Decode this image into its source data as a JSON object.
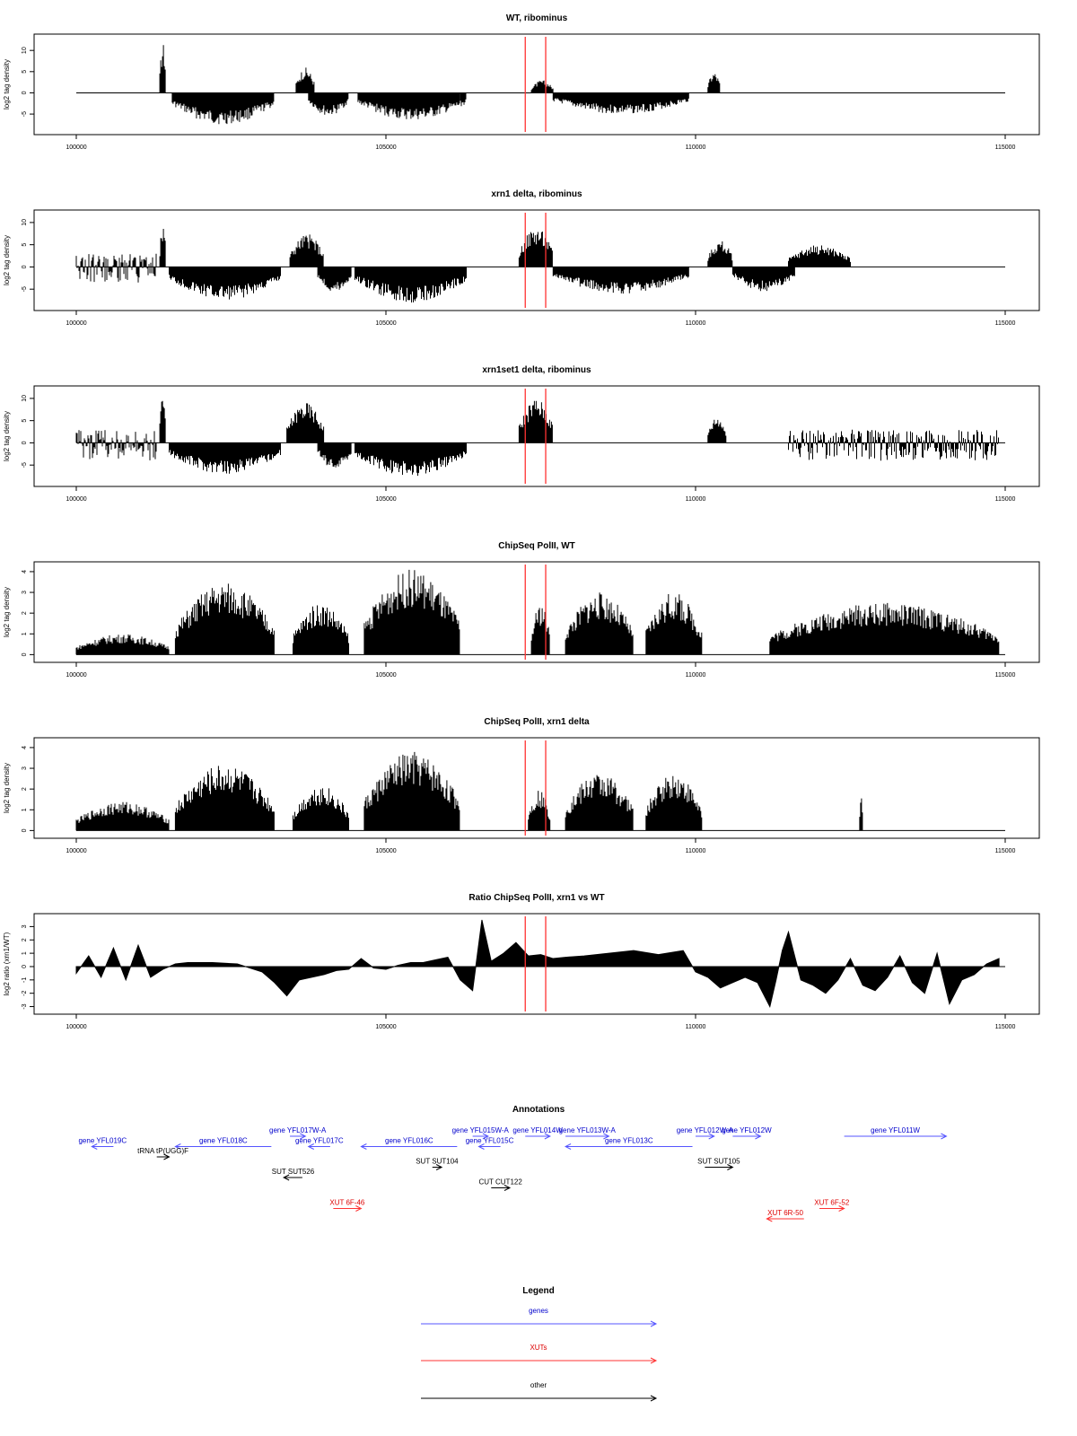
{
  "chart_data": [
    {
      "type": "bar",
      "title": "WT, ribominus",
      "ylabel": "log2 tag density",
      "xlim": [
        100000,
        115000
      ],
      "ylim": [
        -9,
        13
      ],
      "yticks": [
        -5,
        0,
        5,
        10
      ],
      "xticks": [
        100000,
        105000,
        110000,
        115000
      ],
      "markers": [
        107250,
        107580
      ],
      "profile": [
        {
          "x": [
            101350,
            101450
          ],
          "y": [
            10,
            12
          ]
        },
        {
          "x": [
            101550,
            103200
          ],
          "y": [
            -6.5,
            -7.5
          ]
        },
        {
          "x": [
            103550,
            103850
          ],
          "y": [
            5,
            6
          ]
        },
        {
          "x": [
            103750,
            104400
          ],
          "y": [
            -4.5,
            -5.5
          ]
        },
        {
          "x": [
            104550,
            106300
          ],
          "y": [
            -5.5,
            -6.5
          ]
        },
        {
          "x": [
            107350,
            107700
          ],
          "y": [
            2,
            3
          ]
        },
        {
          "x": [
            107700,
            109900
          ],
          "y": [
            -4,
            -5
          ]
        },
        {
          "x": [
            110200,
            110400
          ],
          "y": [
            4,
            5
          ]
        }
      ],
      "baseline_x": [
        100000,
        115000
      ]
    },
    {
      "type": "bar",
      "title": "xrn1 delta, ribominus",
      "ylabel": "log2 tag density",
      "xlim": [
        100000,
        115000
      ],
      "ylim": [
        -9,
        12
      ],
      "yticks": [
        -5,
        0,
        5,
        10
      ],
      "xticks": [
        100000,
        105000,
        110000,
        115000
      ],
      "markers": [
        107250,
        107580
      ],
      "profile": [
        {
          "x": [
            100000,
            101300
          ],
          "y": [
            3,
            -4
          ]
        },
        {
          "x": [
            101350,
            101450
          ],
          "y": [
            9,
            10
          ]
        },
        {
          "x": [
            101500,
            103300
          ],
          "y": [
            -6.5,
            -7.5
          ]
        },
        {
          "x": [
            103450,
            104000
          ],
          "y": [
            6,
            7.5
          ]
        },
        {
          "x": [
            103900,
            104450
          ],
          "y": [
            -5,
            -6
          ]
        },
        {
          "x": [
            104500,
            106300
          ],
          "y": [
            -7,
            -8
          ]
        },
        {
          "x": [
            107150,
            107700
          ],
          "y": [
            7,
            9
          ]
        },
        {
          "x": [
            107700,
            109900
          ],
          "y": [
            -5,
            -6
          ]
        },
        {
          "x": [
            110200,
            110600
          ],
          "y": [
            5,
            6
          ]
        },
        {
          "x": [
            110600,
            111600
          ],
          "y": [
            -5,
            -5.5
          ]
        },
        {
          "x": [
            111500,
            112500
          ],
          "y": [
            4,
            5
          ]
        }
      ],
      "baseline_x": [
        100000,
        115000
      ]
    },
    {
      "type": "bar",
      "title": "xrn1set1 delta, ribominus",
      "ylabel": "log2 tag density",
      "xlim": [
        100000,
        115000
      ],
      "ylim": [
        -9,
        12
      ],
      "yticks": [
        -5,
        0,
        5,
        10
      ],
      "xticks": [
        100000,
        105000,
        110000,
        115000
      ],
      "markers": [
        107250,
        107580
      ],
      "profile": [
        {
          "x": [
            100000,
            101300
          ],
          "y": [
            3,
            -4
          ]
        },
        {
          "x": [
            101350,
            101450
          ],
          "y": [
            10,
            11
          ]
        },
        {
          "x": [
            101500,
            103300
          ],
          "y": [
            -6,
            -7
          ]
        },
        {
          "x": [
            103400,
            104000
          ],
          "y": [
            7,
            9
          ]
        },
        {
          "x": [
            103900,
            104450
          ],
          "y": [
            -5,
            -6
          ]
        },
        {
          "x": [
            104500,
            106300
          ],
          "y": [
            -6.5,
            -7.5
          ]
        },
        {
          "x": [
            107150,
            107700
          ],
          "y": [
            8,
            10
          ]
        },
        {
          "x": [
            110200,
            110500
          ],
          "y": [
            5,
            6
          ]
        },
        {
          "x": [
            111500,
            114900
          ],
          "y": [
            3,
            -4
          ]
        }
      ],
      "baseline_x": [
        100000,
        115000
      ]
    },
    {
      "type": "bar",
      "title": "ChipSeq PolII, WT",
      "ylabel": "log2 tag density",
      "xlim": [
        100000,
        115000
      ],
      "ylim": [
        -0.2,
        4.3
      ],
      "yticks": [
        0,
        1,
        2,
        3,
        4
      ],
      "xticks": [
        100000,
        105000,
        110000,
        115000
      ],
      "markers": [
        107250,
        107580
      ],
      "profile": [
        {
          "x": [
            100000,
            101500
          ],
          "y": [
            1,
            1
          ]
        },
        {
          "x": [
            101600,
            103200
          ],
          "y": [
            2.5,
            3.5
          ]
        },
        {
          "x": [
            103500,
            104400
          ],
          "y": [
            2,
            2.5
          ]
        },
        {
          "x": [
            104650,
            106200
          ],
          "y": [
            3.5,
            4.1
          ]
        },
        {
          "x": [
            107350,
            107650
          ],
          "y": [
            1.5,
            2.5
          ]
        },
        {
          "x": [
            107900,
            109000
          ],
          "y": [
            2.5,
            3
          ]
        },
        {
          "x": [
            109200,
            110100
          ],
          "y": [
            2.5,
            3
          ]
        },
        {
          "x": [
            111200,
            114900
          ],
          "y": [
            1,
            2.5
          ]
        }
      ],
      "baseline_x": [
        100000,
        115000
      ]
    },
    {
      "type": "bar",
      "title": "ChipSeq PolII, xrn1 delta",
      "ylabel": "log2 tag density",
      "xlim": [
        100000,
        115000
      ],
      "ylim": [
        -0.2,
        4.3
      ],
      "yticks": [
        0,
        1,
        2,
        3,
        4
      ],
      "xticks": [
        100000,
        105000,
        110000,
        115000
      ],
      "markers": [
        107250,
        107580
      ],
      "profile": [
        {
          "x": [
            100000,
            101500
          ],
          "y": [
            0.4,
            1.4
          ]
        },
        {
          "x": [
            101600,
            103200
          ],
          "y": [
            2.5,
            3.2
          ]
        },
        {
          "x": [
            103500,
            104400
          ],
          "y": [
            2,
            2.2
          ]
        },
        {
          "x": [
            104650,
            106200
          ],
          "y": [
            3.5,
            3.8
          ]
        },
        {
          "x": [
            107300,
            107650
          ],
          "y": [
            1.5,
            2
          ]
        },
        {
          "x": [
            107900,
            109000
          ],
          "y": [
            2.5,
            2.8
          ]
        },
        {
          "x": [
            109200,
            110100
          ],
          "y": [
            2.5,
            2.8
          ]
        },
        {
          "x": [
            112650,
            112700
          ],
          "y": [
            1.8,
            1.8
          ]
        }
      ],
      "baseline_x": [
        100000,
        115000
      ]
    },
    {
      "type": "area",
      "title": "Ratio ChipSeq PolII, xrn1 vs WT",
      "ylabel": "log2 ratio (xrn1/WT)",
      "xlim": [
        100000,
        115000
      ],
      "ylim": [
        -3.3,
        3.7
      ],
      "yticks": [
        -3,
        -2,
        -1,
        0,
        1,
        2,
        3
      ],
      "xticks": [
        100000,
        105000,
        110000,
        115000
      ],
      "markers": [
        107250,
        107580
      ],
      "x": [
        100000,
        100200,
        100400,
        100600,
        100800,
        101000,
        101200,
        101400,
        101600,
        101800,
        102200,
        102600,
        103000,
        103200,
        103400,
        103600,
        103800,
        104000,
        104200,
        104400,
        104600,
        104800,
        105000,
        105200,
        105400,
        105600,
        105800,
        106000,
        106200,
        106400,
        106550,
        106700,
        106900,
        107100,
        107300,
        107500,
        107700,
        107900,
        108200,
        108600,
        109000,
        109400,
        109800,
        110000,
        110200,
        110400,
        110600,
        110800,
        111000,
        111200,
        111300,
        111400,
        111500,
        111700,
        111900,
        112100,
        112300,
        112500,
        112700,
        112900,
        113100,
        113300,
        113500,
        113700,
        113900,
        114100,
        114300,
        114500,
        114700,
        114900
      ],
      "y": [
        -0.5,
        0.8,
        -0.8,
        1.4,
        -1.0,
        1.6,
        -0.8,
        -0.2,
        0.2,
        0.3,
        0.3,
        0.2,
        -0.4,
        -1.2,
        -2.2,
        -1.0,
        -0.8,
        -0.6,
        -0.3,
        -0.2,
        0.6,
        -0.1,
        -0.2,
        0.1,
        0.3,
        0.3,
        0.5,
        0.7,
        -1.0,
        -1.8,
        3.5,
        0.4,
        1.0,
        1.8,
        0.8,
        0.9,
        0.6,
        0.7,
        0.8,
        1.0,
        1.2,
        0.9,
        1.2,
        -0.4,
        -0.8,
        -1.6,
        -1.2,
        -0.8,
        -1.2,
        -3.0,
        -1.0,
        1.2,
        2.6,
        -1.0,
        -1.4,
        -2.0,
        -1.0,
        0.6,
        -1.4,
        -1.8,
        -0.8,
        0.8,
        -1.2,
        -2.0,
        1.0,
        -2.8,
        -1.0,
        -0.6,
        0.2,
        0.6
      ],
      "baseline_x": [
        100000,
        115000
      ]
    }
  ],
  "annotations": {
    "title": "Annotations",
    "xlim": [
      100000,
      115000
    ],
    "colors": {
      "genes": "#0000cc",
      "xuts": "#dd0000",
      "other": "#000000",
      "gene_line": "#5555ff",
      "xut_line": "#ff3333"
    },
    "features": [
      {
        "label": "gene YFL019C",
        "start": 100600,
        "end": 100250,
        "kind": "gene",
        "row": 2
      },
      {
        "label": "gene YFL018C",
        "start": 103150,
        "end": 101600,
        "kind": "gene",
        "row": 2
      },
      {
        "label": "gene YFL017W-A",
        "start": 103450,
        "end": 103700,
        "kind": "gene",
        "row": 1
      },
      {
        "label": "gene YFL017C",
        "start": 104100,
        "end": 103750,
        "kind": "gene",
        "row": 2
      },
      {
        "label": "gene YFL016C",
        "start": 106150,
        "end": 104600,
        "kind": "gene",
        "row": 2
      },
      {
        "label": "gene YFL015W-A",
        "start": 106400,
        "end": 106650,
        "kind": "gene",
        "row": 1
      },
      {
        "label": "gene YFL015C",
        "start": 106850,
        "end": 106500,
        "kind": "gene",
        "row": 2
      },
      {
        "label": "gene YFL014W",
        "start": 107250,
        "end": 107650,
        "kind": "gene",
        "row": 1
      },
      {
        "label": "gene YFL013W-A",
        "start": 107900,
        "end": 108600,
        "kind": "gene",
        "row": 1
      },
      {
        "label": "gene YFL013C",
        "start": 109950,
        "end": 107900,
        "kind": "gene",
        "row": 2
      },
      {
        "label": "gene YFL012W-A",
        "start": 110000,
        "end": 110300,
        "kind": "gene",
        "row": 1
      },
      {
        "label": "gene YFL012W",
        "start": 110600,
        "end": 111050,
        "kind": "gene",
        "row": 1
      },
      {
        "label": "gene YFL011W",
        "start": 112400,
        "end": 114050,
        "kind": "gene",
        "row": 1
      },
      {
        "label": "tRNA tP(UGG)F",
        "start": 101300,
        "end": 101500,
        "kind": "other",
        "row": 3
      },
      {
        "label": "SUT SUT526",
        "start": 103650,
        "end": 103350,
        "kind": "other",
        "row": 5
      },
      {
        "label": "SUT SUT104",
        "start": 105750,
        "end": 105900,
        "kind": "other",
        "row": 4
      },
      {
        "label": "SUT SUT105",
        "start": 110150,
        "end": 110600,
        "kind": "other",
        "row": 4
      },
      {
        "label": "CUT CUT122",
        "start": 106700,
        "end": 107000,
        "kind": "other",
        "row": 6
      },
      {
        "label": "XUT 6F-46",
        "start": 104150,
        "end": 104600,
        "kind": "xut",
        "row": 8
      },
      {
        "label": "XUT 6F-52",
        "start": 112000,
        "end": 112400,
        "kind": "xut",
        "row": 8
      },
      {
        "label": "XUT 6R-50",
        "start": 111750,
        "end": 111150,
        "kind": "xut",
        "row": 9
      }
    ]
  },
  "legend": {
    "title": "Legend",
    "items": [
      {
        "label": "genes",
        "kind": "gene"
      },
      {
        "label": "XUTs",
        "kind": "xut"
      },
      {
        "label": "other",
        "kind": "other"
      }
    ]
  }
}
